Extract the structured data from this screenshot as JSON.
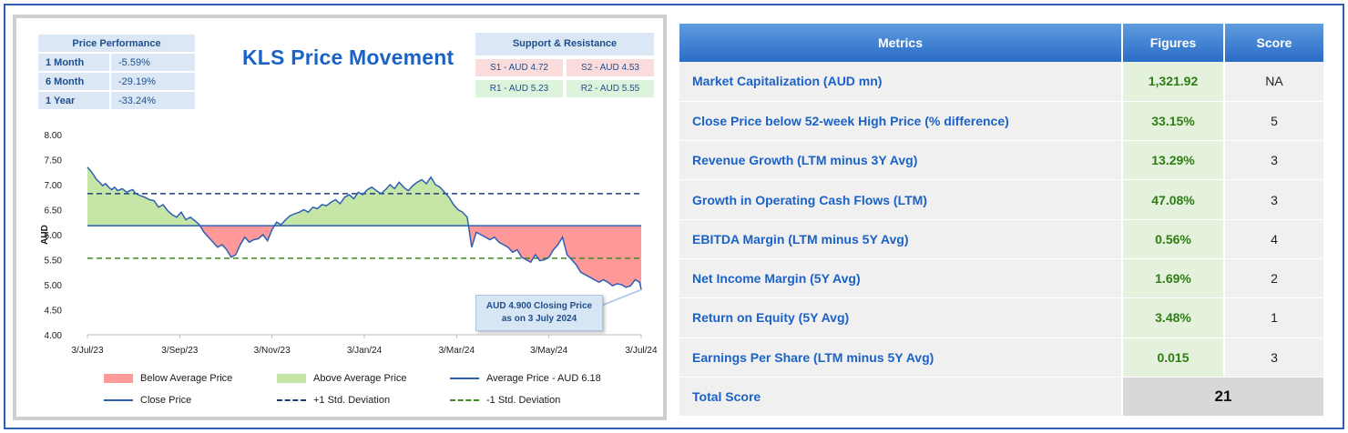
{
  "title": "KLS Price Movement",
  "price_performance": {
    "header": "Price Performance",
    "rows": [
      {
        "label": "1 Month",
        "value": "-5.59%"
      },
      {
        "label": "6 Month",
        "value": "-29.19%"
      },
      {
        "label": "1 Year",
        "value": "-33.24%"
      }
    ]
  },
  "support_resistance": {
    "header": "Support & Resistance",
    "s1": "S1 - AUD 4.72",
    "s2": "S2 - AUD 4.53",
    "r1": "R1 - AUD 5.23",
    "r2": "R2 - AUD 5.55"
  },
  "callout": {
    "line1": "AUD 4.900 Closing Price",
    "line2": "as on 3 July 2024"
  },
  "legend": {
    "below": "Below Average Price",
    "above": "Above Average Price",
    "average": "Average Price - AUD 6.18",
    "close": "Close Price",
    "plus_sd": "+1 Std. Deviation",
    "minus_sd": "-1 Std. Deviation"
  },
  "colors": {
    "below_fill": "#ff9999",
    "above_fill": "#c6e6a8",
    "close_line": "#2f5fb3",
    "avg_line": "#2f5fb3",
    "plus_sd": "#1f3f7a",
    "minus_sd": "#3d8b1f"
  },
  "chart_data": {
    "type": "area",
    "ylabel": "AUD",
    "ylim": [
      4.0,
      8.0
    ],
    "yticks": [
      "4.00",
      "4.50",
      "5.00",
      "5.50",
      "6.00",
      "6.50",
      "7.00",
      "7.50",
      "8.00"
    ],
    "xticks": [
      "3/Jul/23",
      "3/Sep/23",
      "3/Nov/23",
      "3/Jan/24",
      "3/Mar/24",
      "3/May/24",
      "3/Jul/24"
    ],
    "average": 6.18,
    "plus_sd": 6.82,
    "minus_sd": 5.53,
    "series": [
      {
        "name": "Close Price",
        "x": [
          0,
          2,
          4,
          6,
          8,
          10,
          12,
          14,
          16,
          18,
          20,
          23,
          26,
          28,
          30,
          32,
          35,
          38,
          41,
          44,
          47,
          50,
          53,
          56,
          59,
          62,
          65,
          68,
          71,
          74,
          77,
          80,
          83,
          86,
          89,
          92,
          95,
          98,
          101,
          104,
          107,
          110,
          113,
          116,
          119,
          122,
          125,
          128,
          131,
          134,
          137,
          140,
          143,
          146,
          149,
          152,
          155,
          158,
          161,
          164,
          167,
          170,
          173,
          176,
          179,
          182,
          185,
          188,
          191,
          194,
          197,
          200,
          203,
          206,
          209,
          212,
          215,
          218,
          221,
          224,
          227,
          230,
          233,
          236,
          239,
          242,
          245,
          248,
          251,
          254,
          257,
          260,
          263,
          266,
          269,
          272,
          275,
          278,
          281,
          284,
          287,
          290,
          293,
          296,
          299,
          302,
          305,
          308,
          311,
          314,
          317,
          320,
          323,
          326,
          329,
          332,
          335,
          338,
          341,
          344,
          347,
          350,
          353,
          356,
          359,
          362,
          365,
          366
        ],
        "y": [
          7.35,
          7.28,
          7.2,
          7.1,
          7.05,
          6.98,
          7.02,
          6.95,
          6.9,
          6.95,
          6.88,
          6.92,
          6.85,
          6.88,
          6.9,
          6.82,
          6.78,
          6.75,
          6.7,
          6.68,
          6.55,
          6.6,
          6.48,
          6.4,
          6.35,
          6.45,
          6.3,
          6.35,
          6.28,
          6.2,
          6.05,
          5.95,
          5.85,
          5.75,
          5.8,
          5.7,
          5.55,
          5.6,
          5.8,
          5.95,
          5.85,
          5.9,
          5.92,
          6.0,
          5.88,
          6.1,
          6.25,
          6.2,
          6.3,
          6.38,
          6.42,
          6.45,
          6.5,
          6.45,
          6.55,
          6.52,
          6.6,
          6.58,
          6.65,
          6.7,
          6.62,
          6.75,
          6.8,
          6.72,
          6.85,
          6.8,
          6.9,
          6.95,
          6.88,
          6.82,
          6.9,
          7.0,
          6.92,
          7.05,
          6.95,
          6.88,
          6.98,
          7.05,
          7.1,
          7.02,
          7.15,
          7.0,
          6.95,
          6.85,
          6.75,
          6.6,
          6.5,
          6.45,
          6.35,
          5.75,
          6.05,
          6.0,
          5.95,
          5.9,
          5.95,
          5.85,
          5.8,
          5.75,
          5.65,
          5.7,
          5.55,
          5.5,
          5.45,
          5.6,
          5.48,
          5.5,
          5.55,
          5.7,
          5.8,
          5.95,
          5.6,
          5.5,
          5.4,
          5.25,
          5.2,
          5.15,
          5.1,
          5.05,
          5.1,
          5.05,
          4.98,
          5.02,
          5.0,
          4.95,
          4.98,
          5.1,
          5.05,
          4.9
        ]
      }
    ]
  },
  "metrics_table": {
    "headers": {
      "metric": "Metrics",
      "figure": "Figures",
      "score": "Score"
    },
    "rows": [
      {
        "metric": "Market Capitalization (AUD mn)",
        "figure": "1,321.92",
        "score": "NA"
      },
      {
        "metric": "Close Price below 52-week High Price (% difference)",
        "figure": "33.15%",
        "score": "5"
      },
      {
        "metric": "Revenue Growth (LTM minus 3Y Avg)",
        "figure": "13.29%",
        "score": "3"
      },
      {
        "metric": "Growth in Operating Cash Flows (LTM)",
        "figure": "47.08%",
        "score": "3"
      },
      {
        "metric": "EBITDA Margin (LTM minus 5Y Avg)",
        "figure": "0.56%",
        "score": "4"
      },
      {
        "metric": "Net Income Margin (5Y Avg)",
        "figure": "1.69%",
        "score": "2"
      },
      {
        "metric": "Return on Equity (5Y Avg)",
        "figure": "3.48%",
        "score": "1"
      },
      {
        "metric": "Earnings Per Share (LTM minus 5Y Avg)",
        "figure": "0.015",
        "score": "3"
      }
    ],
    "total_label": "Total Score",
    "total_value": "21"
  }
}
